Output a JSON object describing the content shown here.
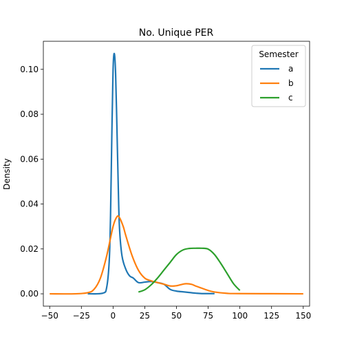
{
  "chart_data": {
    "type": "line",
    "title": "No. Unique PER",
    "xlabel": "",
    "ylabel": "Density",
    "xlim": [
      -55,
      155
    ],
    "ylim": [
      -0.0055,
      0.1125
    ],
    "xticks": [
      -50,
      -25,
      0,
      25,
      50,
      75,
      100,
      125,
      150
    ],
    "yticks": [
      0.0,
      0.02,
      0.04,
      0.06,
      0.08,
      0.1
    ],
    "ytick_labels": [
      "0.00",
      "0.02",
      "0.04",
      "0.06",
      "0.08",
      "0.10"
    ],
    "grid": false,
    "legend": {
      "title": "Semester",
      "position": "top-right"
    },
    "series": [
      {
        "name": "a",
        "color": "#1f77b4",
        "points": [
          [
            -20,
            0
          ],
          [
            -8,
            0.0003
          ],
          [
            -5,
            0.003
          ],
          [
            -3,
            0.015
          ],
          [
            -2,
            0.035
          ],
          [
            -1,
            0.07
          ],
          [
            0,
            0.1
          ],
          [
            1,
            0.107
          ],
          [
            2,
            0.098
          ],
          [
            3,
            0.075
          ],
          [
            4,
            0.05
          ],
          [
            5,
            0.03
          ],
          [
            7,
            0.017
          ],
          [
            10,
            0.011
          ],
          [
            13,
            0.008
          ],
          [
            16,
            0.007
          ],
          [
            20,
            0.005
          ],
          [
            25,
            0.0052
          ],
          [
            30,
            0.0055
          ],
          [
            35,
            0.005
          ],
          [
            40,
            0.0043
          ],
          [
            45,
            0.002
          ],
          [
            50,
            0.0012
          ],
          [
            55,
            0.0009
          ],
          [
            60,
            0.0006
          ],
          [
            65,
            0.0003
          ],
          [
            70,
            0.0001
          ],
          [
            80,
            0.0001
          ]
        ]
      },
      {
        "name": "b",
        "color": "#ff7f0e",
        "points": [
          [
            -50,
            0
          ],
          [
            -30,
            0
          ],
          [
            -20,
            0.0005
          ],
          [
            -15,
            0.002
          ],
          [
            -10,
            0.007
          ],
          [
            -5,
            0.017
          ],
          [
            0,
            0.03
          ],
          [
            3,
            0.0343
          ],
          [
            5,
            0.034
          ],
          [
            8,
            0.03
          ],
          [
            10,
            0.026
          ],
          [
            15,
            0.017
          ],
          [
            20,
            0.0105
          ],
          [
            25,
            0.007
          ],
          [
            30,
            0.0058
          ],
          [
            35,
            0.005
          ],
          [
            40,
            0.0043
          ],
          [
            45,
            0.0035
          ],
          [
            50,
            0.0036
          ],
          [
            55,
            0.0043
          ],
          [
            58,
            0.0045
          ],
          [
            62,
            0.0042
          ],
          [
            65,
            0.0035
          ],
          [
            70,
            0.0025
          ],
          [
            75,
            0.0015
          ],
          [
            80,
            0.0008
          ],
          [
            90,
            0.0002
          ],
          [
            100,
            0.0001
          ],
          [
            150,
            0
          ]
        ]
      },
      {
        "name": "c",
        "color": "#2ca02c",
        "points": [
          [
            20,
            0.0008
          ],
          [
            25,
            0.0018
          ],
          [
            30,
            0.004
          ],
          [
            35,
            0.007
          ],
          [
            40,
            0.0105
          ],
          [
            45,
            0.014
          ],
          [
            50,
            0.0175
          ],
          [
            55,
            0.0195
          ],
          [
            60,
            0.0202
          ],
          [
            65,
            0.0203
          ],
          [
            70,
            0.0203
          ],
          [
            75,
            0.0199
          ],
          [
            80,
            0.0175
          ],
          [
            85,
            0.0135
          ],
          [
            90,
            0.009
          ],
          [
            95,
            0.0045
          ],
          [
            100,
            0.0015
          ]
        ]
      }
    ]
  }
}
